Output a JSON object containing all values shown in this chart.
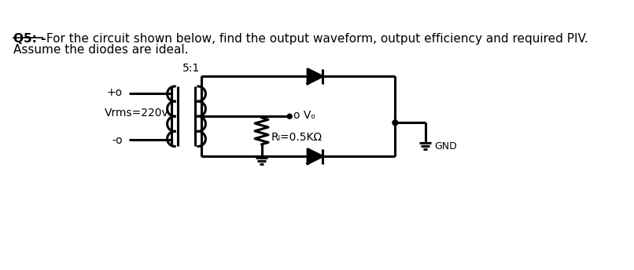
{
  "title_q": "Q5: -",
  "title_rest": " For the circuit shown below, find the output waveform, output efficiency and required PIV.",
  "subtitle": "Assume the diodes are ideal.",
  "vrms_label": "Vrms=220v",
  "ratio_label": "5:1",
  "vo_label": "o Vₒ",
  "rl_label": "Rₗ=0.5KΩ",
  "gnd_label": "GND",
  "plus_label": "+o",
  "minus_label": "-o",
  "bg_color": "#ffffff",
  "line_color": "#000000",
  "line_width": 2.2,
  "fig_width": 8.06,
  "fig_height": 3.44,
  "dpi": 100
}
